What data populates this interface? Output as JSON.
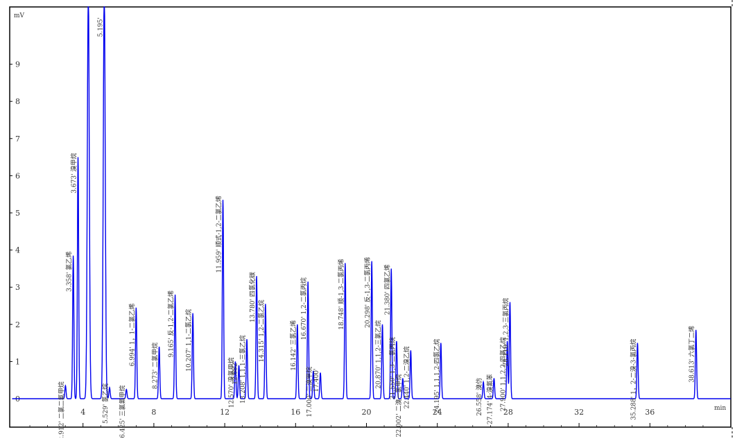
{
  "chart_data": {
    "type": "line",
    "y_unit": "mV",
    "x_unit": "min",
    "xlim": [
      0,
      40.8
    ],
    "ylim": [
      -0.3,
      10.7
    ],
    "x_ticks": [
      "4",
      "8",
      "12",
      "16",
      "20",
      "24",
      "28",
      "32",
      "36"
    ],
    "y_ticks": [
      "1",
      "2",
      "3",
      "4",
      "5",
      "6",
      "7",
      "8",
      "9"
    ],
    "grid": false,
    "line_color": "#0000ee",
    "peaks": [
      {
        "rt": 3.01,
        "height": 0.35,
        "label": "2.912' 二氯二氟甲烷"
      },
      {
        "rt": 3.45,
        "height": 3.85,
        "label": "3.358' 氯乙烯"
      },
      {
        "rt": 3.72,
        "height": 6.5,
        "label": "3.673' 溴甲烷"
      },
      {
        "rt": 4.3,
        "height": 11.0,
        "label": ""
      },
      {
        "rt": 5.2,
        "height": 11.0,
        "label": "5.195'"
      },
      {
        "rt": 5.5,
        "height": 0.3,
        "label": "5.529' 氯乙烷"
      },
      {
        "rt": 6.45,
        "height": 0.25,
        "label": "6.425' 三氯氟甲烷"
      },
      {
        "rt": 7.0,
        "height": 2.45,
        "label": "6.994' 1，1-二氯乙烯"
      },
      {
        "rt": 8.3,
        "height": 1.4,
        "label": "8.273' 二氯甲烷"
      },
      {
        "rt": 9.2,
        "height": 2.8,
        "label": "9.165' 反-1,2-二氯乙烯"
      },
      {
        "rt": 10.2,
        "height": 2.3,
        "label": "10.207' 1,1-二氯乙烷"
      },
      {
        "rt": 11.9,
        "height": 5.35,
        "label": "11.959' 顺式-1,2-二氯乙烯"
      },
      {
        "rt": 12.6,
        "height": 1.0,
        "label": "12.570' 溴氯甲烷"
      },
      {
        "rt": 12.8,
        "height": 0.9,
        "label": "12.682'"
      },
      {
        "rt": 13.25,
        "height": 1.6,
        "label": "13.208' 1,1,1-三氯乙烷"
      },
      {
        "rt": 13.8,
        "height": 3.3,
        "label": "13.780' 四氯化碳"
      },
      {
        "rt": 14.3,
        "height": 2.55,
        "label": "14.315' 1,2-二氯乙烷"
      },
      {
        "rt": 16.1,
        "height": 2.0,
        "label": "16.142' 三氯乙烯"
      },
      {
        "rt": 16.7,
        "height": 3.15,
        "label": "16.670' 1,2-二氯丙烷"
      },
      {
        "rt": 17.0,
        "height": 0.75,
        "label": "17.000' 二溴甲烷"
      },
      {
        "rt": 17.4,
        "height": 0.7,
        "label": "17.400'"
      },
      {
        "rt": 18.8,
        "height": 3.65,
        "label": "18.748' 顺-1,3-二氯丙烯"
      },
      {
        "rt": 20.3,
        "height": 3.7,
        "label": "20.298' 反-1,3-二氯丙烯"
      },
      {
        "rt": 20.9,
        "height": 2.0,
        "label": "20.870' 1,1,2-三氯乙烷"
      },
      {
        "rt": 21.4,
        "height": 3.5,
        "label": "21.380' 四氯乙烯"
      },
      {
        "rt": 21.7,
        "height": 1.55,
        "label": "21.550' 1,3-二氯丙烷"
      },
      {
        "rt": 22.05,
        "height": 0.55,
        "label": "22.002' 二溴一氯甲烷"
      },
      {
        "rt": 22.5,
        "height": 1.3,
        "label": "22.440' 1,2-二溴乙烷"
      },
      {
        "rt": 24.2,
        "height": 1.5,
        "label": "24.195' 1,1,1,2-四氯乙烷"
      },
      {
        "rt": 26.6,
        "height": 0.45,
        "label": "26.558' 溴仿"
      },
      {
        "rt": 27.2,
        "height": 0.55,
        "label": "27.174' 4-溴氟苯"
      },
      {
        "rt": 27.95,
        "height": 1.55,
        "label": "27.900' 1,1,2,2-四氯乙烷"
      },
      {
        "rt": 28.1,
        "height": 2.6,
        "label": "28.110' 1,2,3-三氯丙烷"
      },
      {
        "rt": 35.3,
        "height": 1.5,
        "label": "35.288' 1，2-二溴-3-氯丙烷"
      },
      {
        "rt": 38.6,
        "height": 1.85,
        "label": "38.613' 六氯丁二烯"
      }
    ]
  }
}
